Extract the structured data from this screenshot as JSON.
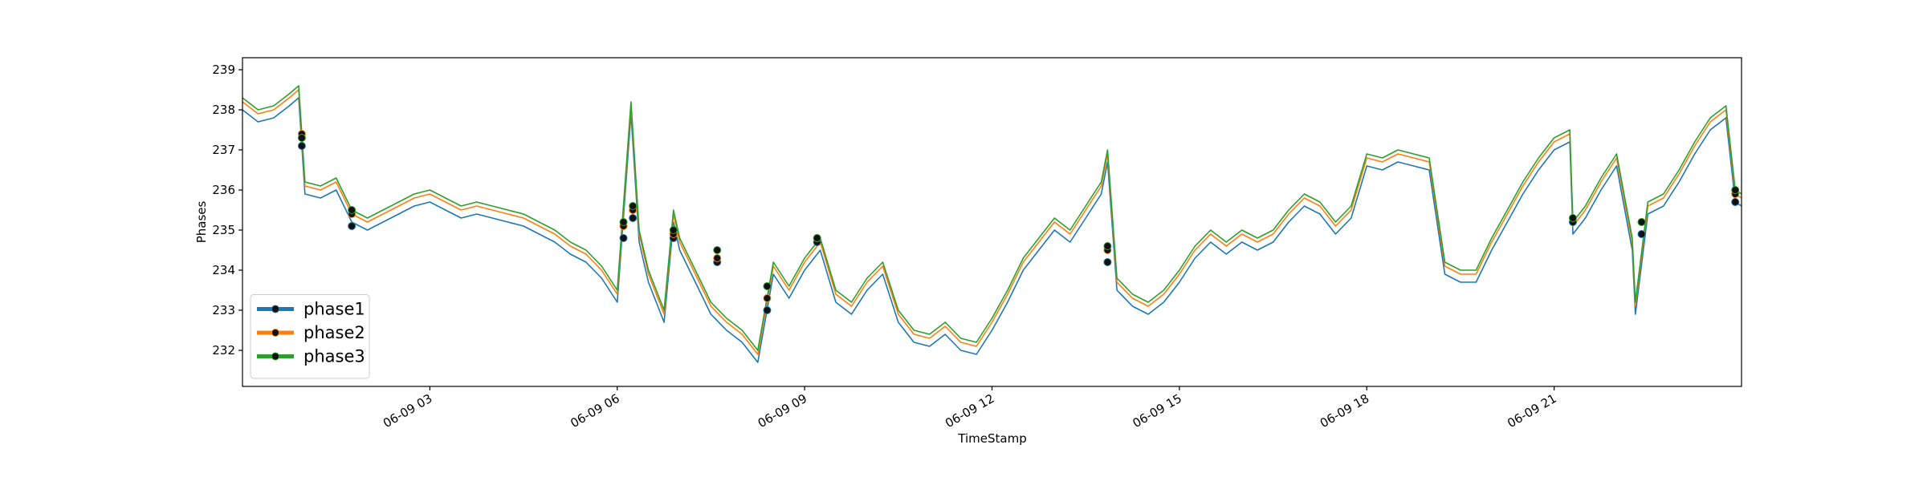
{
  "chart_data": {
    "type": "line",
    "xlabel": "TimeStamp",
    "ylabel": "Phases",
    "xlim": [
      0,
      24
    ],
    "ylim": [
      231.1,
      239.3
    ],
    "xticks": [
      {
        "value": 3,
        "label": "06-09 03"
      },
      {
        "value": 6,
        "label": "06-09 06"
      },
      {
        "value": 9,
        "label": "06-09 09"
      },
      {
        "value": 12,
        "label": "06-09 12"
      },
      {
        "value": 15,
        "label": "06-09 15"
      },
      {
        "value": 18,
        "label": "06-09 18"
      },
      {
        "value": 21,
        "label": "06-09 21"
      }
    ],
    "yticks": [
      232,
      233,
      234,
      235,
      236,
      237,
      238,
      239
    ],
    "legend": "lower left",
    "x": [
      0,
      0.25,
      0.5,
      0.75,
      0.9,
      1.0,
      1.25,
      1.5,
      1.75,
      2.0,
      2.25,
      2.5,
      2.75,
      3.0,
      3.25,
      3.5,
      3.75,
      4.0,
      4.25,
      4.5,
      4.75,
      5.0,
      5.25,
      5.5,
      5.75,
      6.0,
      6.22,
      6.35,
      6.5,
      6.75,
      6.9,
      7.0,
      7.25,
      7.5,
      7.75,
      8.0,
      8.25,
      8.5,
      8.75,
      9.0,
      9.25,
      9.5,
      9.75,
      10.0,
      10.25,
      10.5,
      10.75,
      11.0,
      11.25,
      11.5,
      11.75,
      12.0,
      12.25,
      12.5,
      12.75,
      13.0,
      13.25,
      13.5,
      13.75,
      13.85,
      14.0,
      14.25,
      14.5,
      14.75,
      15.0,
      15.25,
      15.5,
      15.75,
      16.0,
      16.25,
      16.5,
      16.75,
      17.0,
      17.25,
      17.5,
      17.75,
      18.0,
      18.25,
      18.5,
      18.75,
      19.0,
      19.25,
      19.5,
      19.75,
      20.0,
      20.25,
      20.5,
      20.75,
      21.0,
      21.25,
      21.3,
      21.5,
      21.75,
      22.0,
      22.25,
      22.3,
      22.5,
      22.75,
      23.0,
      23.25,
      23.5,
      23.75,
      23.9,
      24
    ],
    "marker_x": [
      0.95,
      1.75,
      6.1,
      6.25,
      6.9,
      7.6,
      8.4,
      9.2,
      13.85,
      21.3,
      22.4,
      23.9
    ],
    "series": [
      {
        "name": "phase1",
        "color": "#1f77b4",
        "values": [
          238.0,
          237.7,
          237.8,
          238.1,
          238.3,
          235.9,
          235.8,
          236.0,
          235.2,
          235.0,
          235.2,
          235.4,
          235.6,
          235.7,
          235.5,
          235.3,
          235.4,
          235.3,
          235.2,
          235.1,
          234.9,
          234.7,
          234.4,
          234.2,
          233.8,
          233.2,
          237.9,
          234.7,
          233.7,
          232.7,
          235.2,
          234.5,
          233.7,
          232.9,
          232.5,
          232.2,
          231.7,
          233.9,
          233.3,
          234.0,
          234.5,
          233.2,
          232.9,
          233.5,
          233.9,
          232.7,
          232.2,
          232.1,
          232.4,
          232.0,
          231.9,
          232.5,
          233.2,
          234.0,
          234.5,
          235.0,
          234.7,
          235.3,
          235.9,
          236.7,
          233.5,
          233.1,
          232.9,
          233.2,
          233.7,
          234.3,
          234.7,
          234.4,
          234.7,
          234.5,
          234.7,
          235.2,
          235.6,
          235.4,
          234.9,
          235.3,
          236.6,
          236.5,
          236.7,
          236.6,
          236.5,
          233.9,
          233.7,
          233.7,
          234.5,
          235.2,
          235.9,
          236.5,
          237.0,
          237.2,
          234.9,
          235.3,
          236.0,
          236.6,
          234.5,
          232.9,
          235.4,
          235.6,
          236.2,
          236.9,
          237.5,
          237.8,
          235.7,
          235.6
        ],
        "marker_values": [
          237.1,
          235.1,
          234.8,
          235.3,
          234.8,
          234.2,
          233.0,
          234.7,
          234.2,
          235.2,
          234.9,
          235.7
        ]
      },
      {
        "name": "phase2",
        "color": "#ff7f0e",
        "values": [
          238.2,
          237.9,
          238.0,
          238.3,
          238.5,
          236.1,
          236.0,
          236.2,
          235.4,
          235.2,
          235.4,
          235.6,
          235.8,
          235.9,
          235.7,
          235.5,
          235.6,
          235.5,
          235.4,
          235.3,
          235.1,
          234.9,
          234.6,
          234.4,
          234.0,
          233.4,
          238.1,
          234.9,
          233.9,
          232.9,
          235.4,
          234.7,
          233.9,
          233.1,
          232.7,
          232.4,
          231.9,
          234.1,
          233.5,
          234.2,
          234.7,
          233.4,
          233.1,
          233.7,
          234.1,
          232.9,
          232.4,
          232.3,
          232.6,
          232.2,
          232.1,
          232.7,
          233.4,
          234.2,
          234.7,
          235.2,
          234.9,
          235.5,
          236.1,
          236.9,
          233.7,
          233.3,
          233.1,
          233.4,
          233.9,
          234.5,
          234.9,
          234.6,
          234.9,
          234.7,
          234.9,
          235.4,
          235.8,
          235.6,
          235.1,
          235.5,
          236.8,
          236.7,
          236.9,
          236.8,
          236.7,
          234.1,
          233.9,
          233.9,
          234.7,
          235.4,
          236.1,
          236.7,
          237.2,
          237.4,
          235.1,
          235.5,
          236.2,
          236.8,
          234.7,
          233.1,
          235.6,
          235.8,
          236.4,
          237.1,
          237.7,
          238.0,
          235.9,
          235.8
        ],
        "marker_values": [
          237.4,
          235.4,
          235.1,
          235.5,
          234.9,
          234.3,
          233.3,
          234.8,
          234.5,
          235.3,
          235.2,
          235.9
        ]
      },
      {
        "name": "phase3",
        "color": "#2ca02c",
        "values": [
          238.3,
          238.0,
          238.1,
          238.4,
          238.6,
          236.2,
          236.1,
          236.3,
          235.5,
          235.3,
          235.5,
          235.7,
          235.9,
          236.0,
          235.8,
          235.6,
          235.7,
          235.6,
          235.5,
          235.4,
          235.2,
          235.0,
          234.7,
          234.5,
          234.1,
          233.5,
          238.2,
          235.0,
          234.0,
          233.0,
          235.5,
          234.8,
          234.0,
          233.2,
          232.8,
          232.5,
          232.0,
          234.2,
          233.6,
          234.3,
          234.8,
          233.5,
          233.2,
          233.8,
          234.2,
          233.0,
          232.5,
          232.4,
          232.7,
          232.3,
          232.2,
          232.8,
          233.5,
          234.3,
          234.8,
          235.3,
          235.0,
          235.6,
          236.2,
          237.0,
          233.8,
          233.4,
          233.2,
          233.5,
          234.0,
          234.6,
          235.0,
          234.7,
          235.0,
          234.8,
          235.0,
          235.5,
          235.9,
          235.7,
          235.2,
          235.6,
          236.9,
          236.8,
          237.0,
          236.9,
          236.8,
          234.2,
          234.0,
          234.0,
          234.8,
          235.5,
          236.2,
          236.8,
          237.3,
          237.5,
          235.2,
          235.6,
          236.3,
          236.9,
          234.8,
          233.2,
          235.7,
          235.9,
          236.5,
          237.2,
          237.8,
          238.1,
          236.0,
          235.9
        ],
        "marker_values": [
          237.3,
          235.5,
          235.2,
          235.6,
          235.0,
          234.5,
          233.6,
          234.8,
          234.6,
          235.3,
          235.2,
          236.0
        ]
      }
    ]
  }
}
